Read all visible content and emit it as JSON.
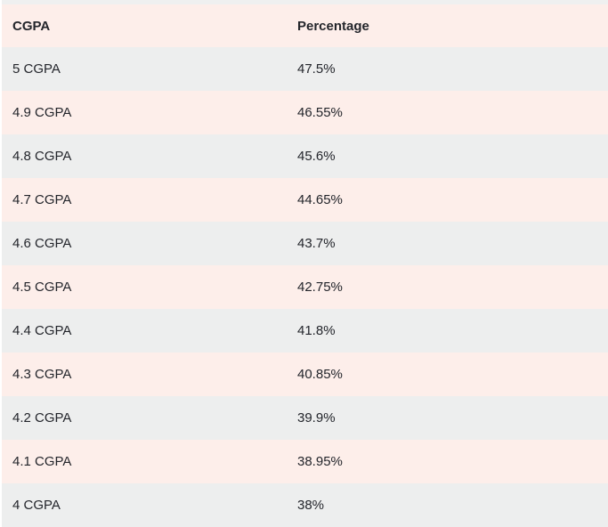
{
  "page": {
    "background": "#ffffff",
    "top_strip_color": "#eff0f0"
  },
  "table": {
    "columns": [
      "CGPA",
      "Percentage"
    ],
    "rows": [
      {
        "cgpa": "5 CGPA",
        "percentage": "47.5%"
      },
      {
        "cgpa": "4.9 CGPA",
        "percentage": "46.55%"
      },
      {
        "cgpa": "4.8 CGPA",
        "percentage": "45.6%"
      },
      {
        "cgpa": "4.7 CGPA",
        "percentage": "44.65%"
      },
      {
        "cgpa": "4.6 CGPA",
        "percentage": "43.7%"
      },
      {
        "cgpa": "4.5 CGPA",
        "percentage": "42.75%"
      },
      {
        "cgpa": "4.4 CGPA",
        "percentage": "41.8%"
      },
      {
        "cgpa": "4.3 CGPA",
        "percentage": "40.85%"
      },
      {
        "cgpa": "4.2 CGPA",
        "percentage": "39.9%"
      },
      {
        "cgpa": "4.1 CGPA",
        "percentage": "38.95%"
      },
      {
        "cgpa": "4 CGPA",
        "percentage": "38%"
      }
    ],
    "colors": {
      "header_bg": "#fdeeea",
      "row_pink": "#fdeeea",
      "row_gray": "#edeeee",
      "text": "#23252b"
    }
  }
}
